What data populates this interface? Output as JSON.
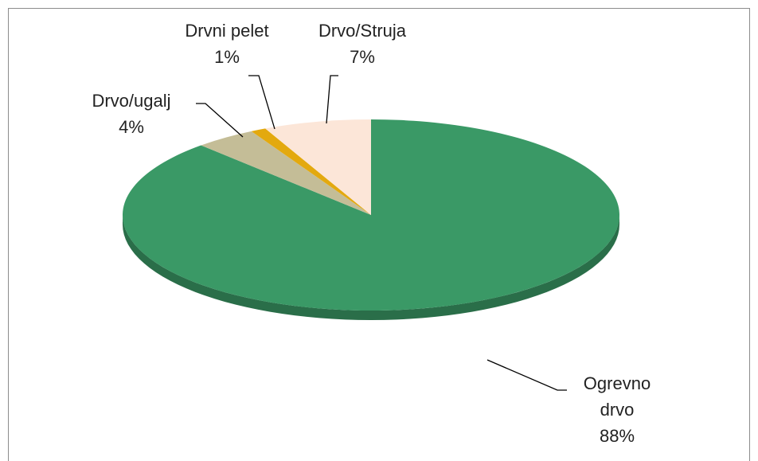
{
  "chart_data": {
    "type": "pie",
    "categories": [
      "Ogrevno drvo",
      "Drvo/ugalj",
      "Drvni pelet",
      "Drvo/Struja"
    ],
    "values": [
      88,
      4,
      1,
      7
    ],
    "value_labels": [
      "88%",
      "4%",
      "1%",
      "7%"
    ],
    "colors": [
      "#3a9966",
      "#c4bd97",
      "#e3a90f",
      "#fce6d8"
    ],
    "style": "3d"
  }
}
